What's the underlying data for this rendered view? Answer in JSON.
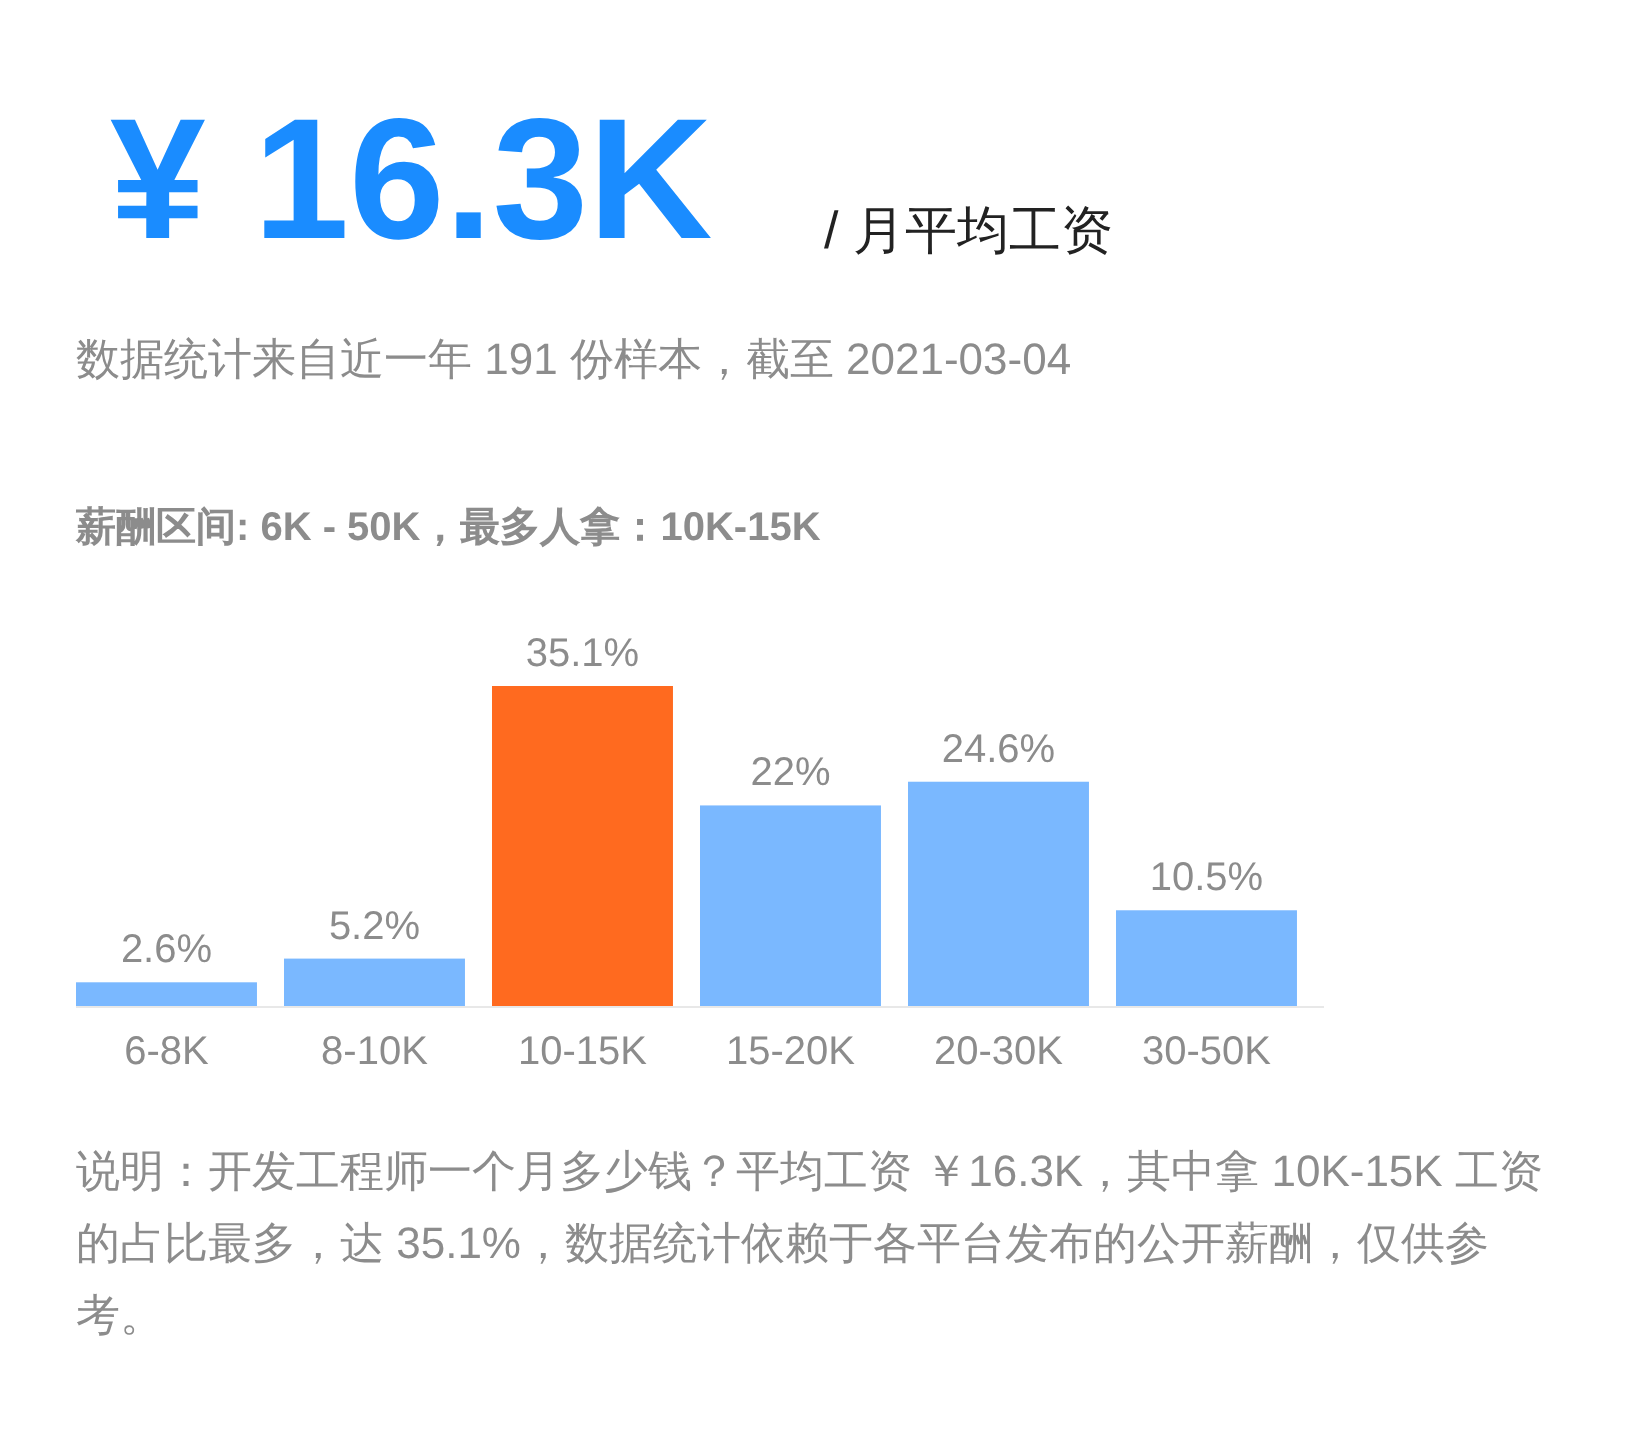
{
  "chart_data": {
    "type": "bar",
    "title": "¥ 16.3K",
    "subtitle": "/ 月平均工资",
    "annotations": [
      "数据统计来自近一年 191 份样本，截至 2021-03-04",
      "薪酬区间: 6K - 50K，最多人拿：10K-15K",
      "说明：开发工程师一个月多少钱？平均工资 ￥16.3K，其中拿 10K-15K 工资的占比最多，达 35.1%，数据统计依赖于各平台发布的公开薪酬，仅供参考。"
    ],
    "categories": [
      "6-8K",
      "8-10K",
      "10-15K",
      "15-20K",
      "20-30K",
      "30-50K"
    ],
    "values": [
      2.6,
      5.2,
      35.1,
      22,
      24.6,
      10.5
    ],
    "value_labels": [
      "2.6%",
      "5.2%",
      "35.1%",
      "22%",
      "24.6%",
      "10.5%"
    ],
    "colors": [
      "#7ab8ff",
      "#7ab8ff",
      "#ff6a1f",
      "#7ab8ff",
      "#7ab8ff",
      "#7ab8ff"
    ]
  }
}
